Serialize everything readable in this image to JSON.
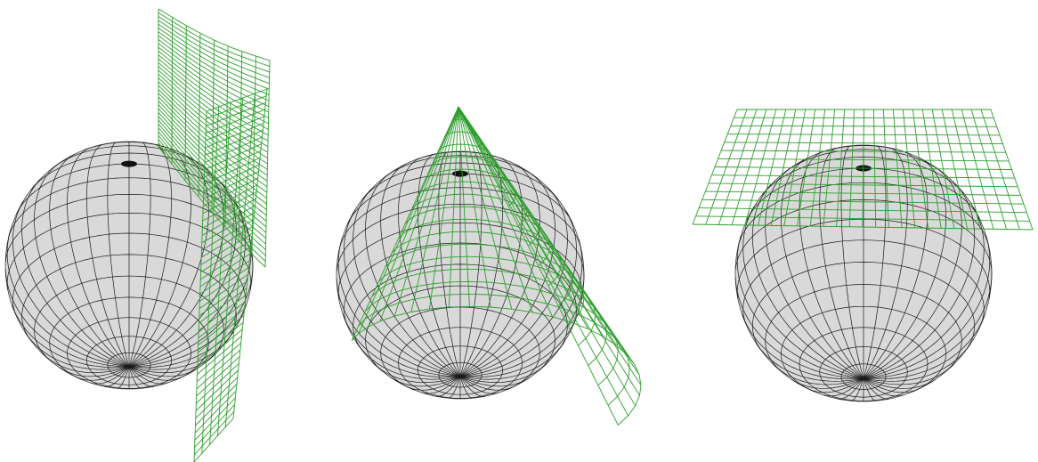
{
  "figure": {
    "panels": [
      {
        "projection": "cylindrical",
        "surface": "cylinder"
      },
      {
        "projection": "conic",
        "surface": "cone"
      },
      {
        "projection": "azimuthal",
        "surface": "plane"
      }
    ]
  },
  "colors": {
    "background": "#ffffff",
    "globe_fill": "#d9d9d9",
    "globe_grid": "#1a1a1a",
    "projection_grid": "#2e9e2e"
  }
}
